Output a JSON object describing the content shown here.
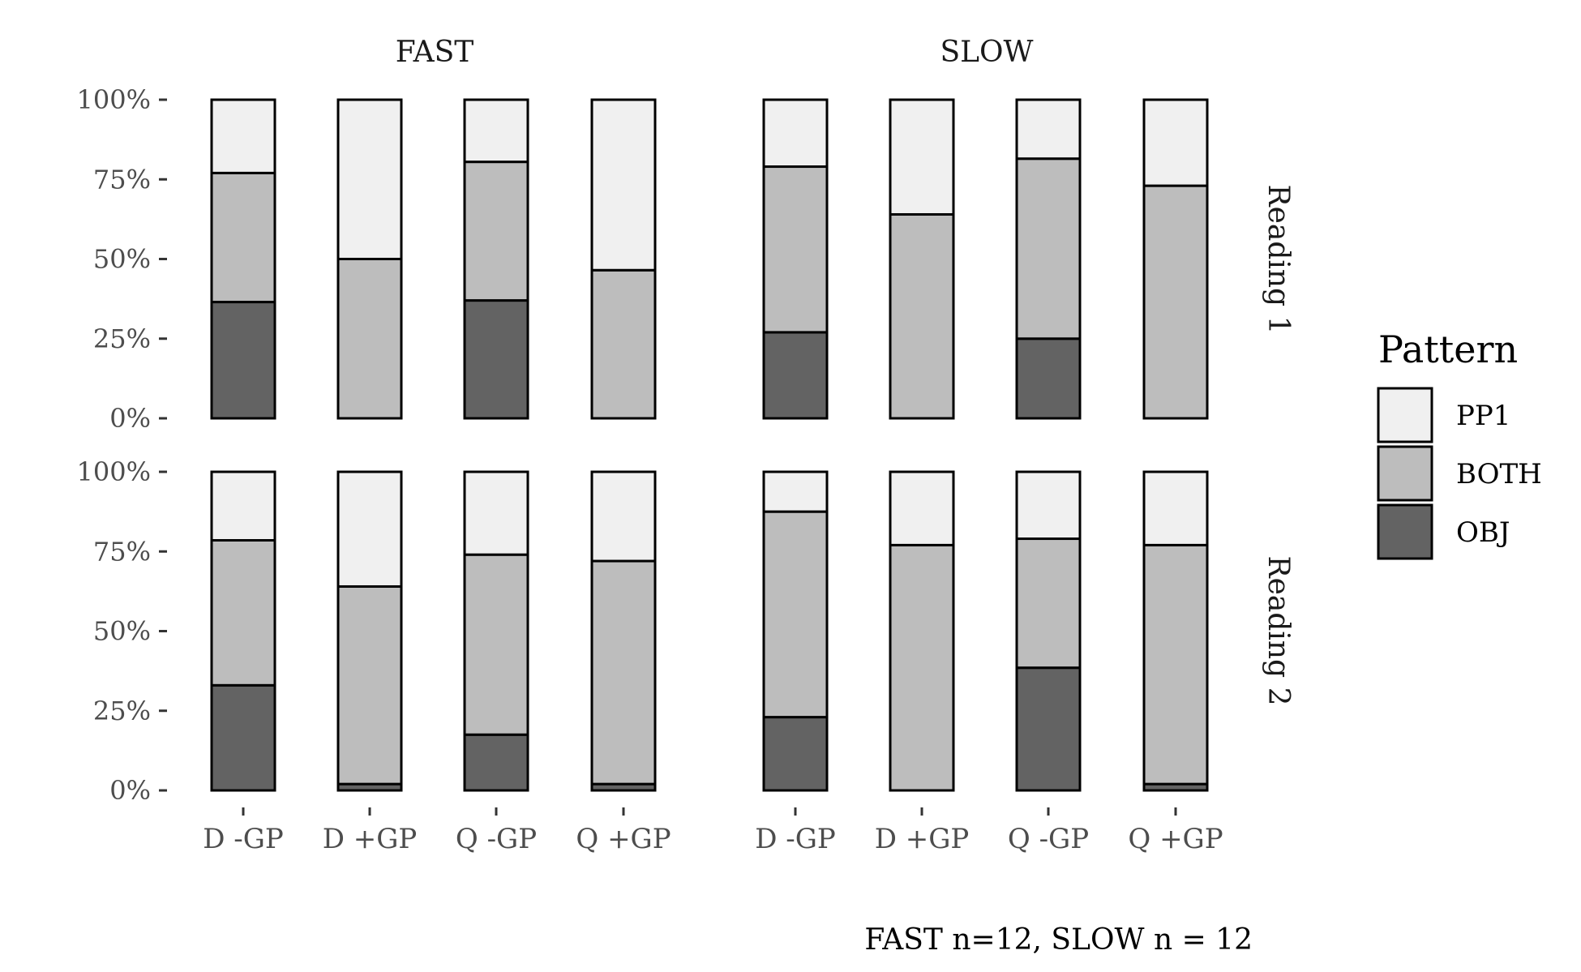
{
  "chart_data": {
    "type": "bar",
    "stacked": true,
    "percent": true,
    "facet_columns": [
      "FAST",
      "SLOW"
    ],
    "facet_rows": [
      "Reading 1",
      "Reading 2"
    ],
    "categories": [
      "D -GP",
      "D +GP",
      "Q -GP",
      "Q +GP"
    ],
    "y_ticks": [
      "0%",
      "25%",
      "50%",
      "75%",
      "100%"
    ],
    "ylim": [
      0,
      100
    ],
    "grid": false,
    "legend": {
      "title": "Pattern",
      "position": "right",
      "entries": [
        {
          "name": "PP1",
          "color": "#f0f0f0"
        },
        {
          "name": "BOTH",
          "color": "#bdbdbd"
        },
        {
          "name": "OBJ",
          "color": "#636363"
        }
      ]
    },
    "caption": "FAST n=12, SLOW n = 12",
    "panels": [
      {
        "column": "FAST",
        "row": "Reading 1",
        "series": [
          {
            "name": "OBJ",
            "values": [
              36.5,
              0,
              37,
              0
            ]
          },
          {
            "name": "BOTH",
            "values": [
              40.5,
              50,
              43.5,
              46.5
            ]
          },
          {
            "name": "PP1",
            "values": [
              23,
              50,
              19.5,
              53.5
            ]
          }
        ]
      },
      {
        "column": "SLOW",
        "row": "Reading 1",
        "series": [
          {
            "name": "OBJ",
            "values": [
              27,
              0,
              25,
              0
            ]
          },
          {
            "name": "BOTH",
            "values": [
              52,
              64,
              56.5,
              73
            ]
          },
          {
            "name": "PP1",
            "values": [
              21,
              36,
              18.5,
              27
            ]
          }
        ]
      },
      {
        "column": "FAST",
        "row": "Reading 2",
        "series": [
          {
            "name": "OBJ",
            "values": [
              33,
              2,
              17.5,
              2
            ]
          },
          {
            "name": "BOTH",
            "values": [
              45.5,
              62,
              56.5,
              70
            ]
          },
          {
            "name": "PP1",
            "values": [
              21.5,
              36,
              26,
              28
            ]
          }
        ]
      },
      {
        "column": "SLOW",
        "row": "Reading 2",
        "series": [
          {
            "name": "OBJ",
            "values": [
              23,
              0,
              38.5,
              2
            ]
          },
          {
            "name": "BOTH",
            "values": [
              64.5,
              77,
              40.5,
              75
            ]
          },
          {
            "name": "PP1",
            "values": [
              12.5,
              23,
              21,
              23
            ]
          }
        ]
      }
    ]
  }
}
